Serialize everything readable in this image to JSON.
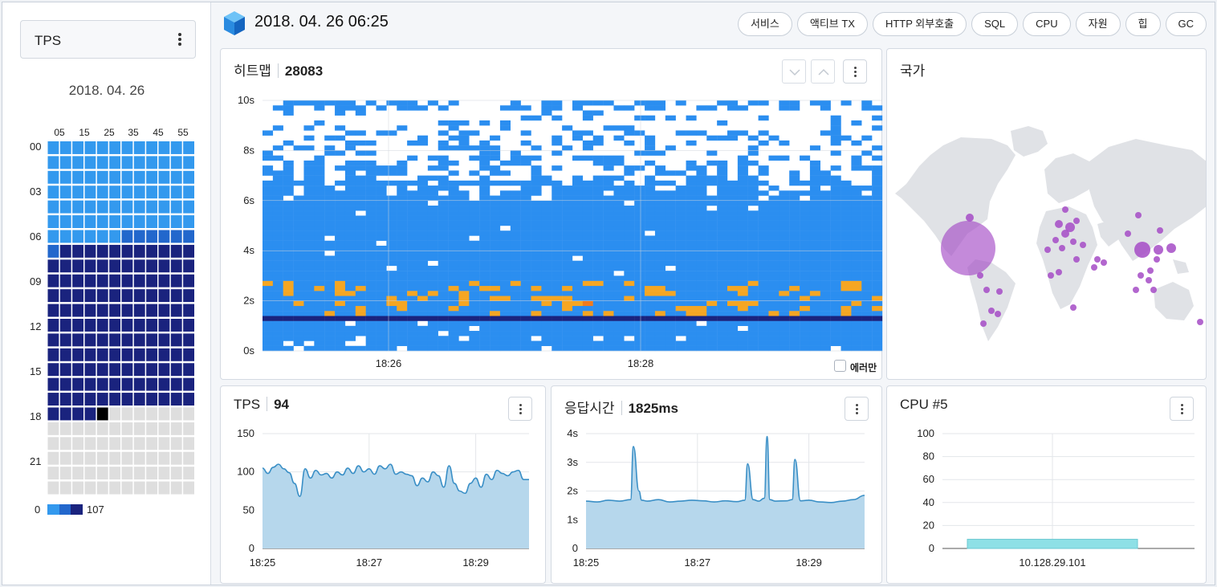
{
  "left_panel": {
    "metric_select": "TPS",
    "date": "2018. 04. 26",
    "minute_labels": [
      "05",
      "15",
      "25",
      "35",
      "45",
      "55"
    ],
    "hour_labels": [
      "00",
      "03",
      "06",
      "09",
      "12",
      "15",
      "18",
      "21"
    ],
    "legend": {
      "min": "0",
      "max": "107"
    },
    "colors": {
      "low": "#3399ee",
      "mid": "#2267cc",
      "high": "#1a237e",
      "current": "#000000",
      "empty": "#dedede"
    }
  },
  "header": {
    "datetime": "2018. 04. 26 06:25",
    "tabs": [
      "서비스",
      "액티브 TX",
      "HTTP 외부호출",
      "SQL",
      "CPU",
      "자원",
      "힙",
      "GC"
    ]
  },
  "heatmap": {
    "title": "히트맵",
    "count": "28083",
    "y_ticks": [
      "0s",
      "2s",
      "4s",
      "6s",
      "8s",
      "10s"
    ],
    "x_ticks": [
      "18:26",
      "18:28"
    ],
    "error_only_label": "에러만",
    "colors": {
      "normal": "#2b8ef0",
      "dense": "#1a237e",
      "warn": "#f5a623",
      "error": "#f07b1e"
    }
  },
  "country": {
    "title": "국가",
    "bubble_color": "#a54bc6"
  },
  "tps": {
    "title": "TPS",
    "value": "94",
    "chart_data": {
      "type": "area",
      "title": "TPS",
      "x_ticks": [
        "18:25",
        "18:27",
        "18:29"
      ],
      "y_ticks": [
        "0",
        "50",
        "100",
        "150"
      ],
      "ylim": [
        0,
        150
      ],
      "xlim_minutes": [
        0,
        5
      ],
      "series": [
        {
          "x": [
            0,
            0.1,
            0.2,
            0.3,
            0.4,
            0.5,
            0.6,
            0.7,
            0.8,
            0.9,
            1.0,
            1.1,
            1.2,
            1.3,
            1.4,
            1.5,
            1.6,
            1.7,
            1.8,
            1.9,
            2.0,
            2.1,
            2.2,
            2.3,
            2.4,
            2.5,
            2.6,
            2.7,
            2.8,
            2.9,
            3.0,
            3.1,
            3.2,
            3.3,
            3.4,
            3.5,
            3.6,
            3.7,
            3.8,
            3.9,
            4.0,
            4.1,
            4.2,
            4.3,
            4.4,
            4.5,
            4.6,
            4.7,
            4.8,
            4.9
          ],
          "values": [
            105,
            98,
            106,
            110,
            104,
            99,
            85,
            68,
            104,
            92,
            102,
            96,
            98,
            92,
            100,
            96,
            105,
            98,
            108,
            100,
            104,
            97,
            108,
            104,
            110,
            97,
            100,
            97,
            95,
            82,
            92,
            87,
            100,
            95,
            80,
            108,
            85,
            75,
            72,
            85,
            92,
            80,
            97,
            90,
            102,
            98,
            95,
            100,
            102,
            90
          ]
        }
      ]
    }
  },
  "response_time": {
    "title": "응답시간",
    "value": "1825ms",
    "chart_data": {
      "type": "area",
      "title": "응답시간",
      "x_ticks": [
        "18:25",
        "18:27",
        "18:29"
      ],
      "y_ticks": [
        "0",
        "1s",
        "2s",
        "3s",
        "4s"
      ],
      "ylim": [
        0,
        4
      ],
      "xlim_minutes": [
        0,
        5
      ],
      "series": [
        {
          "x": [
            0,
            0.2,
            0.4,
            0.6,
            0.8,
            0.85,
            0.95,
            1.0,
            1.1,
            1.3,
            1.5,
            1.7,
            1.9,
            2.1,
            2.3,
            2.5,
            2.7,
            2.85,
            2.9,
            3.0,
            3.1,
            3.2,
            3.25,
            3.3,
            3.4,
            3.6,
            3.7,
            3.75,
            3.85,
            4.0,
            4.2,
            4.4,
            4.6,
            4.8,
            5.0
          ],
          "values": [
            1.65,
            1.62,
            1.68,
            1.65,
            1.7,
            3.55,
            2.0,
            1.68,
            1.65,
            1.7,
            1.62,
            1.65,
            1.68,
            1.66,
            1.62,
            1.66,
            1.63,
            1.68,
            2.95,
            1.7,
            1.65,
            1.75,
            3.9,
            1.7,
            1.65,
            1.66,
            1.7,
            3.1,
            1.66,
            1.68,
            1.62,
            1.6,
            1.65,
            1.7,
            1.85
          ]
        }
      ]
    }
  },
  "cpu": {
    "title": "CPU #5",
    "chart_data": {
      "type": "bar",
      "title": "CPU #5",
      "categories": [
        "10.128.29.101"
      ],
      "values": [
        8
      ],
      "y_ticks": [
        "0",
        "20",
        "40",
        "60",
        "80",
        "100"
      ],
      "ylim": [
        0,
        100
      ],
      "bar_color": "#8ee0e6"
    }
  }
}
